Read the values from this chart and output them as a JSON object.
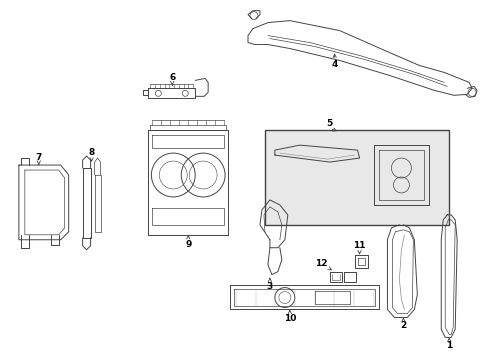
{
  "background_color": "#ffffff",
  "line_color": "#444444",
  "label_color": "#000000",
  "fig_width": 4.9,
  "fig_height": 3.6,
  "dpi": 100,
  "lw": 0.7,
  "label_fontsize": 6.5
}
